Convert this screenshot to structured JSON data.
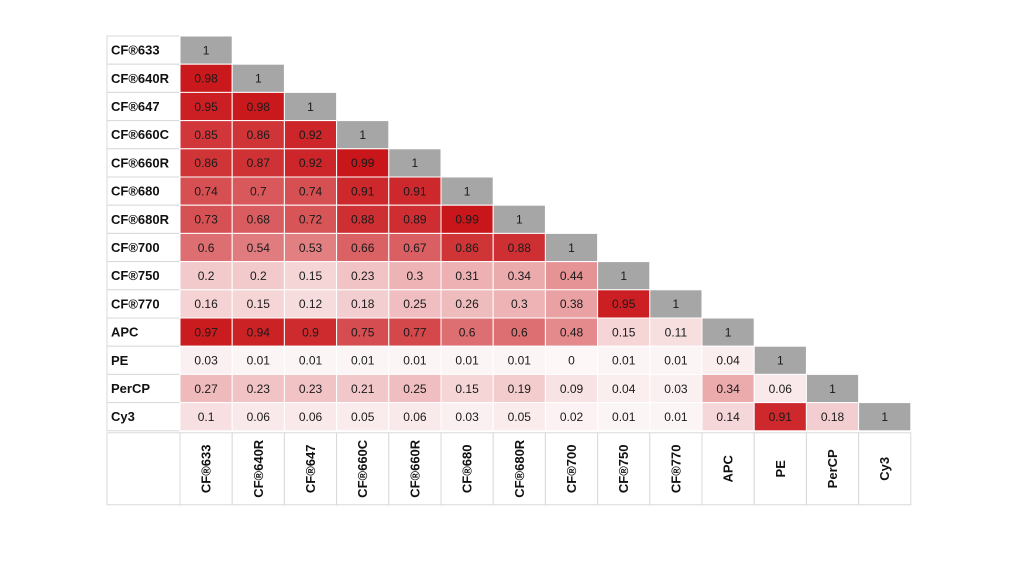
{
  "chart_data": {
    "type": "heatmap",
    "title": "",
    "xlabel": "",
    "ylabel": "",
    "labels": [
      "CF®633",
      "CF®640R",
      "CF®647",
      "CF®660C",
      "CF®660R",
      "CF®680",
      "CF®680R",
      "CF®700",
      "CF®750",
      "CF®770",
      "APC",
      "PE",
      "PerCP",
      "Cy3"
    ],
    "matrix": [
      [
        "1"
      ],
      [
        "0.98",
        "1"
      ],
      [
        "0.95",
        "0.98",
        "1"
      ],
      [
        "0.85",
        "0.86",
        "0.92",
        "1"
      ],
      [
        "0.86",
        "0.87",
        "0.92",
        "0.99",
        "1"
      ],
      [
        "0.74",
        "0.7",
        "0.74",
        "0.91",
        "0.91",
        "1"
      ],
      [
        "0.73",
        "0.68",
        "0.72",
        "0.88",
        "0.89",
        "0.99",
        "1"
      ],
      [
        "0.6",
        "0.54",
        "0.53",
        "0.66",
        "0.67",
        "0.86",
        "0.88",
        "1"
      ],
      [
        "0.2",
        "0.2",
        "0.15",
        "0.23",
        "0.3",
        "0.31",
        "0.34",
        "0.44",
        "1"
      ],
      [
        "0.16",
        "0.15",
        "0.12",
        "0.18",
        "0.25",
        "0.26",
        "0.3",
        "0.38",
        "0.95",
        "1"
      ],
      [
        "0.97",
        "0.94",
        "0.9",
        "0.75",
        "0.77",
        "0.6",
        "0.6",
        "0.48",
        "0.15",
        "0.11",
        "1"
      ],
      [
        "0.03",
        "0.01",
        "0.01",
        "0.01",
        "0.01",
        "0.01",
        "0.01",
        "0",
        "0.01",
        "0.01",
        "0.04",
        "1"
      ],
      [
        "0.27",
        "0.23",
        "0.23",
        "0.21",
        "0.25",
        "0.15",
        "0.19",
        "0.09",
        "0.04",
        "0.03",
        "0.34",
        "0.06",
        "1"
      ],
      [
        "0.1",
        "0.06",
        "0.06",
        "0.05",
        "0.06",
        "0.03",
        "0.05",
        "0.02",
        "0.01",
        "0.01",
        "0.14",
        "0.91",
        "0.18",
        "1"
      ]
    ],
    "colors": {
      "high": "#c81418",
      "low": "#fdf7f8",
      "diagonal": "#a6a6a6",
      "grid": "#d9d9d9"
    }
  }
}
